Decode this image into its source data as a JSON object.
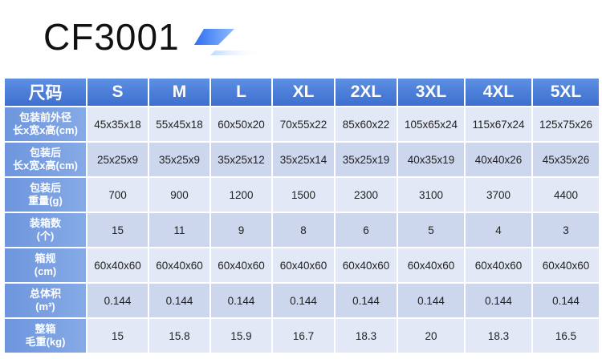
{
  "header": {
    "title": "CF3001",
    "accent_colors": [
      "#3d7cf0",
      "#9ec4ff"
    ]
  },
  "table": {
    "header_label": "尺码",
    "sizes": [
      "S",
      "M",
      "L",
      "XL",
      "2XL",
      "3XL",
      "4XL",
      "5XL"
    ],
    "rows": [
      {
        "label_line1": "包装前外径",
        "label_line2": "长x宽x高(cm)",
        "values": [
          "45x35x18",
          "55x45x18",
          "60x50x20",
          "70x55x22",
          "85x60x22",
          "105x65x24",
          "115x67x24",
          "125x75x26"
        ]
      },
      {
        "label_line1": "包装后",
        "label_line2": "长x宽x高(cm)",
        "values": [
          "25x25x9",
          "35x25x9",
          "35x25x12",
          "35x25x14",
          "35x25x19",
          "40x35x19",
          "40x40x26",
          "45x35x26"
        ]
      },
      {
        "label_line1": "包装后",
        "label_line2": "重量(g)",
        "values": [
          "700",
          "900",
          "1200",
          "1500",
          "2300",
          "3100",
          "3700",
          "4400"
        ]
      },
      {
        "label_line1": "装箱数",
        "label_line2": "(个)",
        "values": [
          "15",
          "11",
          "9",
          "8",
          "6",
          "5",
          "4",
          "3"
        ]
      },
      {
        "label_line1": "箱规",
        "label_line2": "(cm)",
        "values": [
          "60x40x60",
          "60x40x60",
          "60x40x60",
          "60x40x60",
          "60x40x60",
          "60x40x60",
          "60x40x60",
          "60x40x60"
        ]
      },
      {
        "label_line1": "总体积",
        "label_line2": "(m³)",
        "values": [
          "0.144",
          "0.144",
          "0.144",
          "0.144",
          "0.144",
          "0.144",
          "0.144",
          "0.144"
        ]
      },
      {
        "label_line1": "整箱",
        "label_line2": "毛重(kg)",
        "values": [
          "15",
          "15.8",
          "15.9",
          "16.7",
          "18.3",
          "20",
          "18.3",
          "16.5"
        ]
      }
    ]
  }
}
